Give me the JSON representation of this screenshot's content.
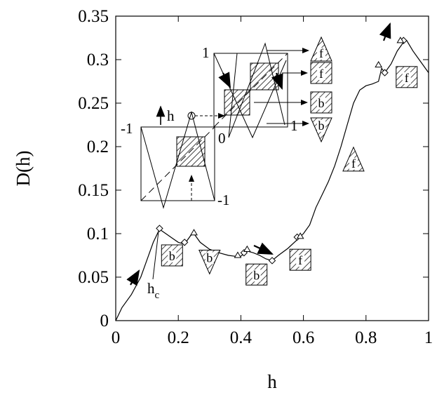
{
  "chart_data": {
    "type": "line",
    "title": "",
    "xlabel": "h",
    "ylabel": "D(h)",
    "xlim": [
      0,
      1
    ],
    "ylim": [
      0,
      0.35
    ],
    "grid": false,
    "x_ticks": [
      0,
      0.2,
      0.4,
      0.6,
      0.8,
      1
    ],
    "x_tick_labels": [
      "0",
      "0.2",
      "0.4",
      "0.6",
      "0.8",
      "1"
    ],
    "y_ticks": [
      0,
      0.05,
      0.1,
      0.15,
      0.2,
      0.25,
      0.3,
      0.35
    ],
    "y_tick_labels": [
      "0",
      "0.05",
      "0.1",
      "0.15",
      "0.2",
      "0.25",
      "0.3",
      "0.35"
    ],
    "series": [
      {
        "x": [
          0,
          0.02,
          0.05,
          0.08,
          0.1,
          0.12,
          0.14,
          0.16,
          0.18,
          0.2,
          0.22,
          0.24,
          0.25,
          0.27,
          0.3,
          0.33,
          0.36,
          0.38,
          0.4,
          0.42,
          0.44,
          0.46,
          0.48,
          0.5,
          0.52,
          0.55,
          0.58,
          0.6,
          0.62,
          0.64,
          0.66,
          0.68,
          0.7,
          0.72,
          0.74,
          0.76,
          0.78,
          0.8,
          0.82,
          0.84,
          0.85,
          0.86,
          0.88,
          0.9,
          0.92,
          0.93,
          0.95,
          0.97,
          1.0
        ],
        "y": [
          0,
          0.015,
          0.03,
          0.05,
          0.07,
          0.09,
          0.105,
          0.1,
          0.095,
          0.09,
          0.088,
          0.098,
          0.1,
          0.09,
          0.082,
          0.078,
          0.075,
          0.074,
          0.074,
          0.08,
          0.078,
          0.075,
          0.071,
          0.069,
          0.075,
          0.083,
          0.093,
          0.1,
          0.11,
          0.13,
          0.145,
          0.16,
          0.178,
          0.2,
          0.225,
          0.25,
          0.265,
          0.27,
          0.272,
          0.275,
          0.29,
          0.285,
          0.295,
          0.31,
          0.32,
          0.322,
          0.31,
          0.3,
          0.285
        ]
      }
    ],
    "diamond_markers": [
      {
        "x": 0.14,
        "y": 0.106
      },
      {
        "x": 0.22,
        "y": 0.09
      },
      {
        "x": 0.41,
        "y": 0.078
      },
      {
        "x": 0.5,
        "y": 0.069
      },
      {
        "x": 0.58,
        "y": 0.096
      },
      {
        "x": 0.86,
        "y": 0.285
      },
      {
        "x": 0.92,
        "y": 0.322
      }
    ],
    "up_triangles": [
      {
        "x": 0.25,
        "y": 0.101
      },
      {
        "x": 0.39,
        "y": 0.075
      },
      {
        "x": 0.42,
        "y": 0.082
      },
      {
        "x": 0.59,
        "y": 0.097
      },
      {
        "x": 0.84,
        "y": 0.294
      },
      {
        "x": 0.91,
        "y": 0.322
      }
    ],
    "annotations": {
      "hc_label": "h",
      "hc_sub": "c",
      "boxes": [
        {
          "letter": "b",
          "shape": "square",
          "x": 0.18,
          "y": 0.075
        },
        {
          "letter": "b",
          "shape": "down-triangle",
          "x": 0.3,
          "y": 0.069
        },
        {
          "letter": "b",
          "shape": "square",
          "x": 0.45,
          "y": 0.053
        },
        {
          "letter": "f",
          "shape": "square",
          "x": 0.59,
          "y": 0.07
        },
        {
          "letter": "f",
          "shape": "up-triangle",
          "x": 0.76,
          "y": 0.184
        },
        {
          "letter": "f",
          "shape": "square",
          "x": 0.93,
          "y": 0.28
        }
      ],
      "inset": {
        "left_minus1": "-1",
        "bottom_minus1": "-1",
        "right_one": "1",
        "top_one": "1",
        "zero": "0",
        "h_label": "h",
        "legend_items": [
          {
            "letter": "f",
            "shape": "up-triangle"
          },
          {
            "letter": "f",
            "shape": "square"
          },
          {
            "letter": "b",
            "shape": "square"
          },
          {
            "letter": "b",
            "shape": "down-triangle"
          }
        ]
      }
    }
  }
}
